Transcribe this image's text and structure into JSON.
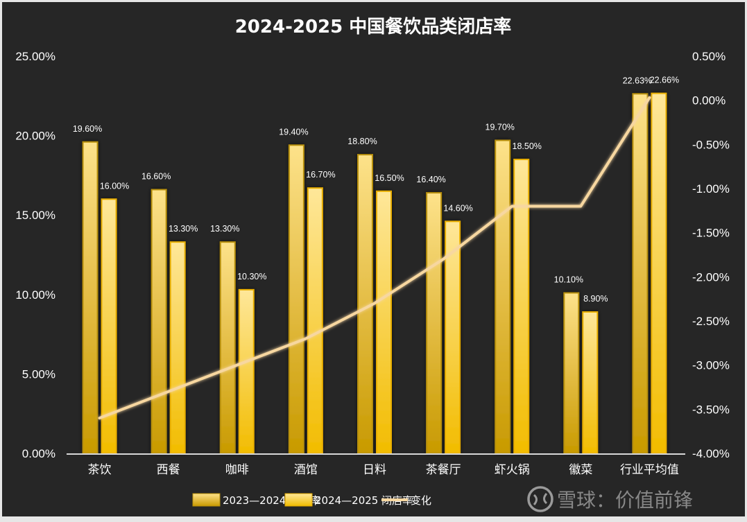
{
  "chart_data": {
    "type": "bar",
    "title": "2024-2025 中国餐饮品类闭店率",
    "categories": [
      "茶饮",
      "西餐",
      "咖啡",
      "酒馆",
      "日料",
      "茶餐厅",
      "虾火锅",
      "徽菜",
      "行业平均值"
    ],
    "series": [
      {
        "name": "2023—2024 闭店率",
        "type": "bar",
        "axis": "left",
        "values": [
          19.6,
          16.6,
          13.3,
          19.4,
          18.8,
          16.4,
          19.7,
          10.1,
          22.63
        ],
        "labels": [
          "19.60%",
          "16.60%",
          "13.30%",
          "19.40%",
          "18.80%",
          "16.40%",
          "19.70%",
          "10.10%",
          "22.63%"
        ],
        "color": "#c89a00"
      },
      {
        "name": "2024—2025 闭店率",
        "type": "bar",
        "axis": "left",
        "values": [
          16.0,
          13.3,
          10.3,
          16.7,
          16.5,
          14.6,
          18.5,
          8.9,
          22.66
        ],
        "labels": [
          "16.00%",
          "13.30%",
          "10.30%",
          "16.70%",
          "16.50%",
          "14.60%",
          "18.50%",
          "8.90%",
          "22.66%"
        ],
        "color": "#f2bc00"
      },
      {
        "name": "变化",
        "type": "line",
        "axis": "right",
        "values": [
          -3.6,
          -3.3,
          -3.0,
          -2.7,
          -2.3,
          -1.8,
          -1.2,
          -1.2,
          0.03
        ],
        "color": "#f7d7a0"
      }
    ],
    "y_left": {
      "range": [
        0,
        25
      ],
      "ticks": [
        "0.00%",
        "5.00%",
        "10.00%",
        "15.00%",
        "20.00%",
        "25.00%"
      ],
      "tick_values": [
        0,
        5,
        10,
        15,
        20,
        25
      ]
    },
    "y_right": {
      "range": [
        -4.0,
        0.5
      ],
      "ticks": [
        "0.50%",
        "0.00%",
        "-0.50%",
        "-1.00%",
        "-1.50%",
        "-2.00%",
        "-2.50%",
        "-3.00%",
        "-3.50%",
        "-4.00%"
      ],
      "tick_values": [
        0.5,
        0,
        -0.5,
        -1.0,
        -1.5,
        -2.0,
        -2.5,
        -3.0,
        -3.5,
        -4.0
      ]
    },
    "xlabel": "",
    "ylabel": "",
    "grid": false,
    "legend_position": "bottom"
  },
  "watermark": {
    "text": "雪球：价值前锋"
  }
}
